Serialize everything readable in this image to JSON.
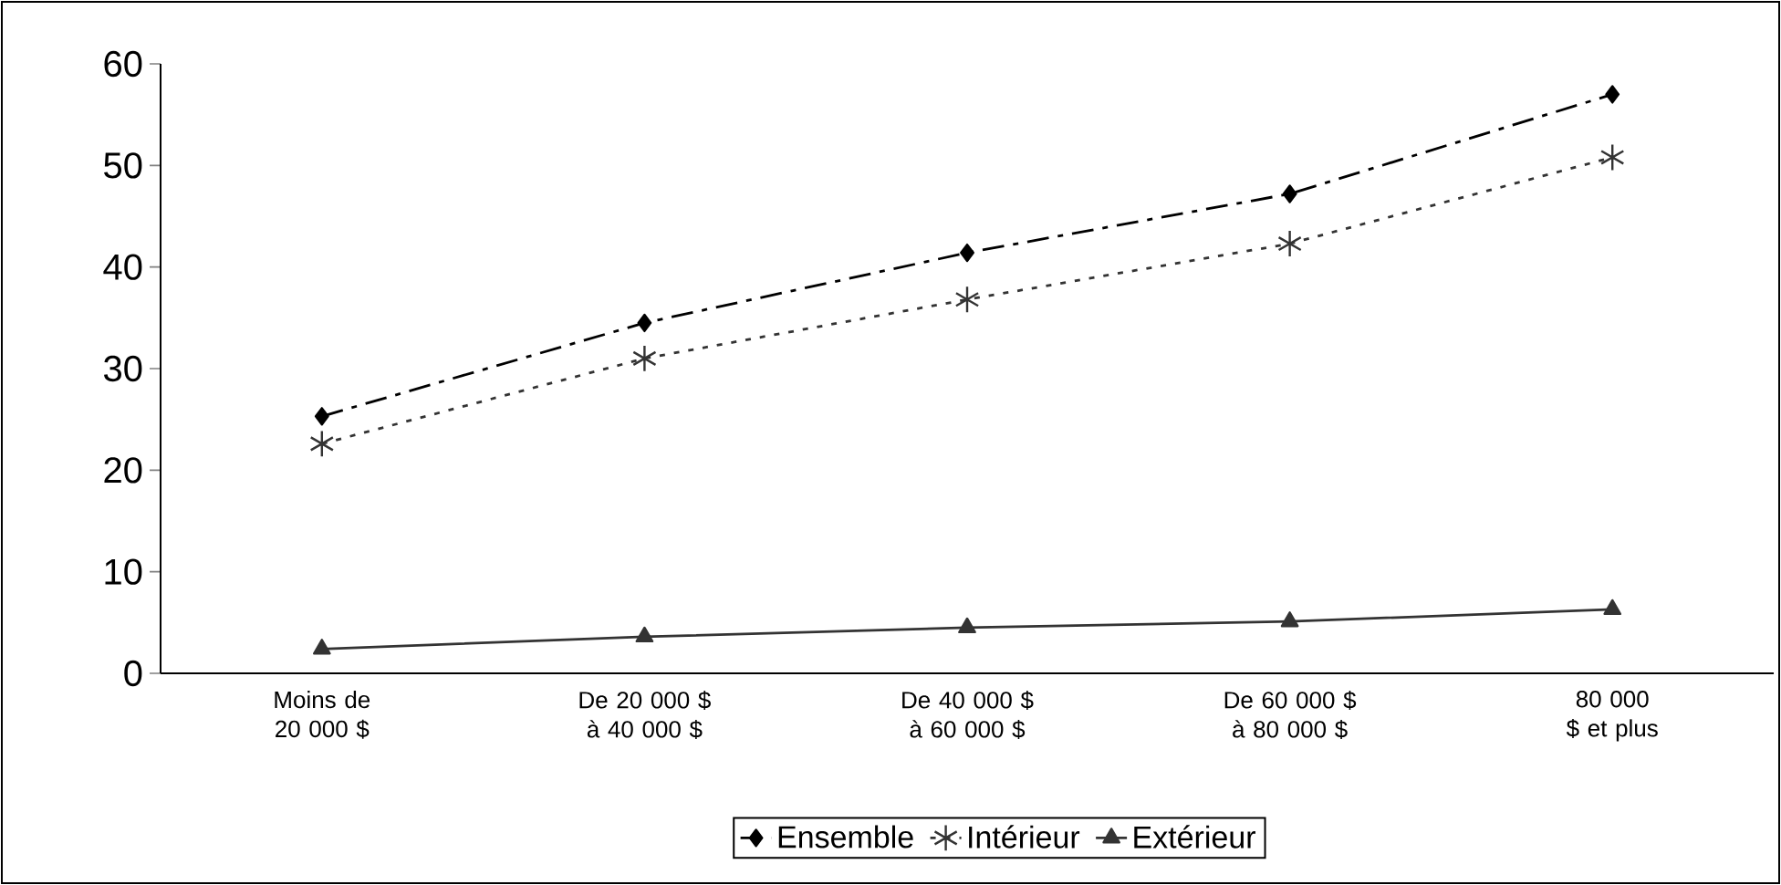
{
  "chart_data": {
    "type": "line",
    "categories": [
      "Moins de 20 000 $",
      "De 20 000 $ à 40 000 $",
      "De 40 000 $ à 60 000 $",
      "De 60 000 $ à 80 000 $",
      "80 000 $ et plus"
    ],
    "series": [
      {
        "name": "Ensemble",
        "color": "#000000",
        "marker": "diamond",
        "line_style": "dashdot",
        "values": [
          25.3,
          34.5,
          41.4,
          47.2,
          57.0
        ]
      },
      {
        "name": "Intérieur",
        "color": "#333333",
        "marker": "cross",
        "line_style": "dotted",
        "values": [
          22.6,
          31.0,
          36.8,
          42.3,
          50.8
        ]
      },
      {
        "name": "Extérieur",
        "color": "#333333",
        "marker": "triangle",
        "line_style": "solid",
        "values": [
          2.4,
          3.6,
          4.5,
          5.1,
          6.3
        ]
      }
    ],
    "ylim": [
      0,
      60
    ],
    "yticks": [
      0,
      10,
      20,
      30,
      40,
      50,
      60
    ],
    "grid": false,
    "legend": "bottom"
  }
}
